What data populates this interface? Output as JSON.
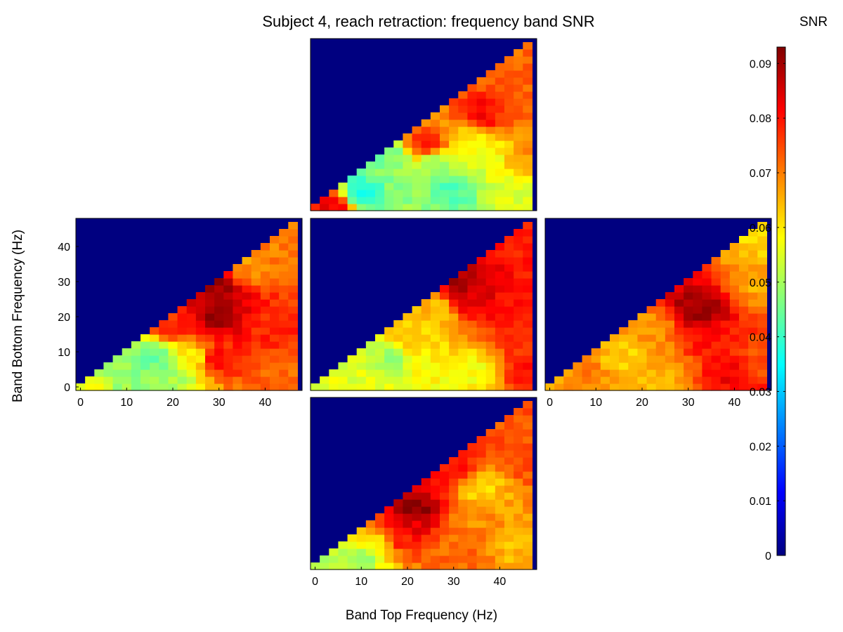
{
  "chart_data": {
    "type": "heatmap",
    "title": "Subject 4, reach retraction: frequency band SNR",
    "xlabel": "Band Top Frequency (Hz)",
    "ylabel": "Band Bottom Frequency (Hz)",
    "colorbar": {
      "label": "SNR",
      "colormap": "jet",
      "range": [
        0,
        0.093
      ],
      "ticks": [
        0,
        0.01,
        0.02,
        0.03,
        0.04,
        0.05,
        0.06,
        0.07,
        0.08,
        0.09
      ],
      "tick_labels": [
        "0",
        "0.01",
        "0.02",
        "0.03",
        "0.04",
        "0.05",
        "0.06",
        "0.07",
        "0.08",
        "0.09"
      ]
    },
    "grid": false,
    "layout": "cross (top, left, center, right, bottom)",
    "masked_region": "bottom frequency above top frequency (value 0)",
    "panels": [
      {
        "name": "top",
        "xlim": [
          -1,
          48
        ],
        "ylim": [
          -1,
          48
        ],
        "xticks": [],
        "yticks": [],
        "values": [
          {
            "x": 0,
            "y": 0,
            "v": 0.081
          },
          {
            "x": 4,
            "y": 0,
            "v": 0.083
          },
          {
            "x": 10,
            "y": 4,
            "v": 0.036
          },
          {
            "x": 20,
            "y": 6,
            "v": 0.048
          },
          {
            "x": 30,
            "y": 4,
            "v": 0.042
          },
          {
            "x": 42,
            "y": 6,
            "v": 0.055
          },
          {
            "x": 16,
            "y": 14,
            "v": 0.046
          },
          {
            "x": 26,
            "y": 12,
            "v": 0.048
          },
          {
            "x": 36,
            "y": 14,
            "v": 0.054
          },
          {
            "x": 46,
            "y": 14,
            "v": 0.068
          },
          {
            "x": 24,
            "y": 18,
            "v": 0.078
          },
          {
            "x": 34,
            "y": 20,
            "v": 0.06
          },
          {
            "x": 36,
            "y": 26,
            "v": 0.082
          },
          {
            "x": 46,
            "y": 28,
            "v": 0.073
          },
          {
            "x": 46,
            "y": 44,
            "v": 0.072
          }
        ]
      },
      {
        "name": "left",
        "xlim": [
          -1,
          48
        ],
        "ylim": [
          -1,
          48
        ],
        "xticks": [
          0,
          10,
          20,
          30,
          40
        ],
        "yticks": [
          0,
          10,
          20,
          30,
          40
        ],
        "values": [
          {
            "x": 0,
            "y": 0,
            "v": 0.057
          },
          {
            "x": 10,
            "y": 4,
            "v": 0.048
          },
          {
            "x": 16,
            "y": 8,
            "v": 0.045
          },
          {
            "x": 20,
            "y": 2,
            "v": 0.05
          },
          {
            "x": 24,
            "y": 8,
            "v": 0.06
          },
          {
            "x": 30,
            "y": 8,
            "v": 0.08
          },
          {
            "x": 30,
            "y": 20,
            "v": 0.09
          },
          {
            "x": 30,
            "y": 28,
            "v": 0.09
          },
          {
            "x": 20,
            "y": 18,
            "v": 0.078
          },
          {
            "x": 40,
            "y": 16,
            "v": 0.078
          },
          {
            "x": 46,
            "y": 4,
            "v": 0.072
          },
          {
            "x": 46,
            "y": 40,
            "v": 0.07
          },
          {
            "x": 36,
            "y": 34,
            "v": 0.068
          }
        ]
      },
      {
        "name": "center",
        "xlim": [
          -1,
          48
        ],
        "ylim": [
          -1,
          48
        ],
        "xticks": [],
        "yticks": [],
        "values": [
          {
            "x": 0,
            "y": 0,
            "v": 0.056
          },
          {
            "x": 10,
            "y": 4,
            "v": 0.055
          },
          {
            "x": 16,
            "y": 8,
            "v": 0.05
          },
          {
            "x": 24,
            "y": 4,
            "v": 0.058
          },
          {
            "x": 20,
            "y": 14,
            "v": 0.062
          },
          {
            "x": 34,
            "y": 4,
            "v": 0.058
          },
          {
            "x": 46,
            "y": 4,
            "v": 0.08
          },
          {
            "x": 46,
            "y": 14,
            "v": 0.078
          },
          {
            "x": 34,
            "y": 26,
            "v": 0.085
          },
          {
            "x": 32,
            "y": 30,
            "v": 0.09
          },
          {
            "x": 44,
            "y": 26,
            "v": 0.08
          },
          {
            "x": 46,
            "y": 42,
            "v": 0.078
          },
          {
            "x": 26,
            "y": 22,
            "v": 0.064
          }
        ]
      },
      {
        "name": "right",
        "xlim": [
          -1,
          48
        ],
        "ylim": [
          -1,
          48
        ],
        "xticks": [
          0,
          10,
          20,
          30,
          40
        ],
        "yticks": [],
        "values": [
          {
            "x": 0,
            "y": 0,
            "v": 0.066
          },
          {
            "x": 8,
            "y": 4,
            "v": 0.07
          },
          {
            "x": 16,
            "y": 8,
            "v": 0.062
          },
          {
            "x": 22,
            "y": 16,
            "v": 0.068
          },
          {
            "x": 24,
            "y": 4,
            "v": 0.065
          },
          {
            "x": 32,
            "y": 22,
            "v": 0.09
          },
          {
            "x": 34,
            "y": 14,
            "v": 0.08
          },
          {
            "x": 40,
            "y": 4,
            "v": 0.082
          },
          {
            "x": 46,
            "y": 8,
            "v": 0.074
          },
          {
            "x": 46,
            "y": 30,
            "v": 0.066
          },
          {
            "x": 46,
            "y": 44,
            "v": 0.062
          }
        ]
      },
      {
        "name": "bottom",
        "xlim": [
          -1,
          48
        ],
        "ylim": [
          -1,
          48
        ],
        "xticks": [
          0,
          10,
          20,
          30,
          40
        ],
        "yticks": [],
        "values": [
          {
            "x": 0,
            "y": 0,
            "v": 0.052
          },
          {
            "x": 10,
            "y": 2,
            "v": 0.05
          },
          {
            "x": 14,
            "y": 6,
            "v": 0.058
          },
          {
            "x": 18,
            "y": 8,
            "v": 0.08
          },
          {
            "x": 22,
            "y": 16,
            "v": 0.092
          },
          {
            "x": 20,
            "y": 12,
            "v": 0.084
          },
          {
            "x": 30,
            "y": 6,
            "v": 0.072
          },
          {
            "x": 34,
            "y": 14,
            "v": 0.068
          },
          {
            "x": 36,
            "y": 22,
            "v": 0.062
          },
          {
            "x": 30,
            "y": 28,
            "v": 0.08
          },
          {
            "x": 46,
            "y": 6,
            "v": 0.064
          },
          {
            "x": 46,
            "y": 30,
            "v": 0.074
          },
          {
            "x": 46,
            "y": 44,
            "v": 0.074
          }
        ]
      }
    ]
  }
}
